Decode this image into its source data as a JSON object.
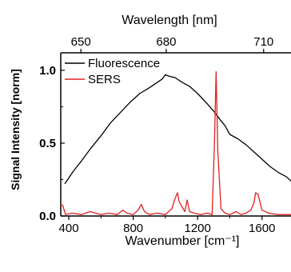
{
  "chart_data": {
    "type": "line",
    "title": "Wavelength [nm]",
    "xlabel": "Wavenumber [cm⁻¹]",
    "ylabel": "Signal Intensity [norm]",
    "top_axis": {
      "label": "Wavelength [nm]",
      "ticks": [
        {
          "label": "650",
          "wavenumber": 475
        },
        {
          "label": "680",
          "wavenumber": 1005
        },
        {
          "label": "710",
          "wavenumber": 1610
        }
      ]
    },
    "xlim": [
      350,
      1780
    ],
    "ylim": [
      0,
      1.12
    ],
    "x_ticks": [
      400,
      800,
      1200,
      1600
    ],
    "y_ticks": [
      0.0,
      0.5,
      1.0
    ],
    "x_tick_labels": [
      "400",
      "800",
      "1200",
      "1600"
    ],
    "y_tick_labels": [
      "0.0",
      "0.5",
      "1.0"
    ],
    "legend": {
      "position": "top-left",
      "entries": [
        "Fluorescence",
        "SERS"
      ]
    },
    "series": [
      {
        "name": "Fluorescence",
        "color": "#000000",
        "x": [
          375,
          430,
          480,
          540,
          600,
          660,
          720,
          780,
          840,
          900,
          940,
          980,
          1000,
          1020,
          1060,
          1100,
          1150,
          1200,
          1260,
          1300,
          1340,
          1370,
          1400,
          1450,
          1500,
          1550,
          1600,
          1650,
          1700,
          1750,
          1780
        ],
        "y": [
          0.22,
          0.31,
          0.38,
          0.47,
          0.55,
          0.64,
          0.71,
          0.78,
          0.84,
          0.88,
          0.91,
          0.94,
          0.97,
          0.96,
          0.95,
          0.92,
          0.89,
          0.84,
          0.77,
          0.72,
          0.66,
          0.62,
          0.56,
          0.53,
          0.49,
          0.44,
          0.39,
          0.34,
          0.3,
          0.27,
          0.24
        ]
      },
      {
        "name": "SERS",
        "color": "#e02020",
        "x": [
          360,
          380,
          420,
          480,
          530,
          600,
          650,
          700,
          735,
          760,
          800,
          830,
          850,
          870,
          900,
          950,
          1000,
          1040,
          1060,
          1075,
          1085,
          1100,
          1120,
          1135,
          1150,
          1180,
          1220,
          1260,
          1290,
          1305,
          1315,
          1325,
          1345,
          1370,
          1400,
          1440,
          1470,
          1500,
          1530,
          1550,
          1560,
          1575,
          1600,
          1640,
          1700,
          1780
        ],
        "y": [
          0.08,
          0.01,
          0.02,
          0.01,
          0.03,
          0.01,
          0.02,
          0.01,
          0.04,
          0.02,
          0.01,
          0.04,
          0.08,
          0.03,
          0.01,
          0.02,
          0.01,
          0.05,
          0.12,
          0.16,
          0.1,
          0.07,
          0.03,
          0.11,
          0.03,
          0.02,
          0.01,
          0.02,
          0.01,
          0.5,
          0.99,
          0.45,
          0.05,
          0.02,
          0.01,
          0.03,
          0.01,
          0.02,
          0.04,
          0.09,
          0.16,
          0.15,
          0.04,
          0.02,
          0.01,
          0.01
        ]
      }
    ]
  }
}
